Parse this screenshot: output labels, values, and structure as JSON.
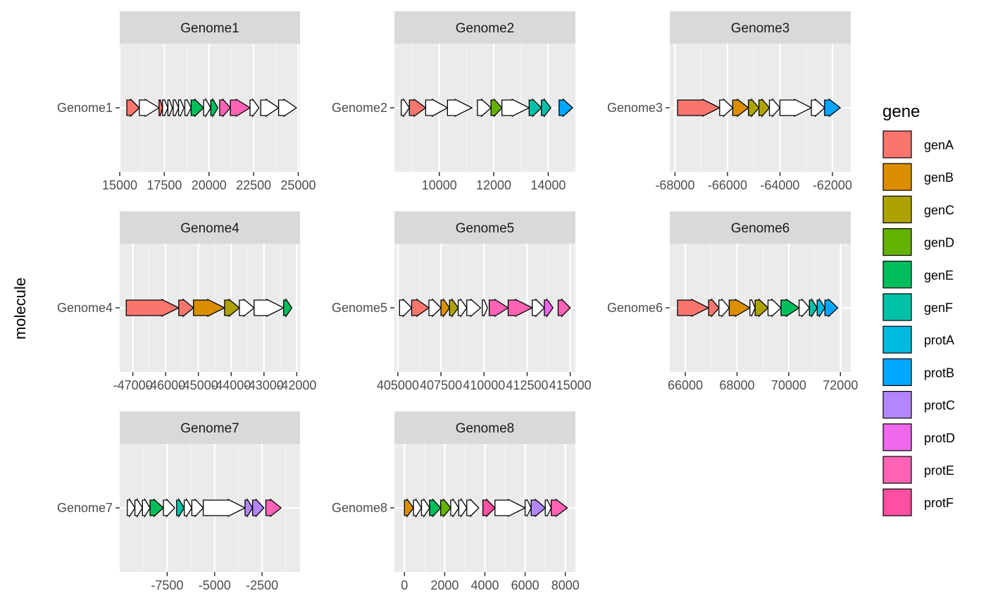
{
  "chart_data": {
    "type": "gene-arrow-map",
    "ylabel": "molecule",
    "legend": {
      "title": "gene",
      "position": "right",
      "entries": [
        {
          "name": "genA",
          "color": "#F8766D"
        },
        {
          "name": "genB",
          "color": "#DB8E00"
        },
        {
          "name": "genC",
          "color": "#AEA200"
        },
        {
          "name": "genD",
          "color": "#64B200"
        },
        {
          "name": "genE",
          "color": "#00BD5C"
        },
        {
          "name": "genF",
          "color": "#00C1A7"
        },
        {
          "name": "protA",
          "color": "#00BADE"
        },
        {
          "name": "protB",
          "color": "#00A6FF"
        },
        {
          "name": "protC",
          "color": "#B385FF"
        },
        {
          "name": "protD",
          "color": "#EF67EB"
        },
        {
          "name": "protE",
          "color": "#FF63B6"
        },
        {
          "name": "protF",
          "color": "#FF4FA0"
        }
      ]
    },
    "panels": [
      {
        "title": "Genome1",
        "molecule": "Genome1",
        "xlim": [
          15000,
          25100
        ],
        "ticks": [
          {
            "value": 15000,
            "label": "15000"
          },
          {
            "value": 17500,
            "label": "17500"
          },
          {
            "value": 20000,
            "label": "20000"
          },
          {
            "value": 22500,
            "label": "22500"
          },
          {
            "value": 25000,
            "label": "25000"
          }
        ],
        "genes": [
          {
            "start": 15400,
            "end": 16100,
            "fill": "genA"
          },
          {
            "start": 16100,
            "end": 17200,
            "fill": null
          },
          {
            "start": 17200,
            "end": 17400,
            "fill": "genA"
          },
          {
            "start": 17400,
            "end": 17700,
            "fill": null
          },
          {
            "start": 17700,
            "end": 17950,
            "fill": null
          },
          {
            "start": 18000,
            "end": 18300,
            "fill": null
          },
          {
            "start": 18300,
            "end": 18600,
            "fill": null
          },
          {
            "start": 18650,
            "end": 19000,
            "fill": null
          },
          {
            "start": 19000,
            "end": 19700,
            "fill": "genE"
          },
          {
            "start": 19700,
            "end": 20100,
            "fill": null
          },
          {
            "start": 20100,
            "end": 20500,
            "fill": "genE"
          },
          {
            "start": 20600,
            "end": 21200,
            "fill": "protE"
          },
          {
            "start": 21200,
            "end": 22300,
            "fill": "protE"
          },
          {
            "start": 22300,
            "end": 22800,
            "fill": null
          },
          {
            "start": 22900,
            "end": 23900,
            "fill": null
          },
          {
            "start": 23900,
            "end": 24900,
            "fill": null
          }
        ]
      },
      {
        "title": "Genome2",
        "molecule": "Genome2",
        "xlim": [
          8350,
          15000
        ],
        "ticks": [
          {
            "value": 10000,
            "label": "10000"
          },
          {
            "value": 12000,
            "label": "12000"
          },
          {
            "value": 14000,
            "label": "14000"
          }
        ],
        "genes": [
          {
            "start": 8600,
            "end": 8900,
            "fill": null
          },
          {
            "start": 8900,
            "end": 9500,
            "fill": "genA"
          },
          {
            "start": 9500,
            "end": 10300,
            "fill": null
          },
          {
            "start": 10300,
            "end": 11200,
            "fill": null
          },
          {
            "start": 11400,
            "end": 11900,
            "fill": null
          },
          {
            "start": 11900,
            "end": 12300,
            "fill": "genD"
          },
          {
            "start": 12300,
            "end": 13300,
            "fill": null
          },
          {
            "start": 13300,
            "end": 13750,
            "fill": "genF"
          },
          {
            "start": 13750,
            "end": 14100,
            "fill": "genF"
          },
          {
            "start": 14400,
            "end": 14900,
            "fill": "protB"
          }
        ]
      },
      {
        "title": "Genome3",
        "molecule": "Genome3",
        "xlim": [
          -68200,
          -61300
        ],
        "ticks": [
          {
            "value": -68000,
            "label": "-68000"
          },
          {
            "value": -66000,
            "label": "-66000"
          },
          {
            "value": -64000,
            "label": "-64000"
          },
          {
            "value": -62000,
            "label": "-62000"
          }
        ],
        "genes": [
          {
            "start": -67900,
            "end": -66300,
            "fill": "genA"
          },
          {
            "start": -66300,
            "end": -65800,
            "fill": null
          },
          {
            "start": -65800,
            "end": -65200,
            "fill": "genB"
          },
          {
            "start": -65200,
            "end": -64800,
            "fill": "genC"
          },
          {
            "start": -64800,
            "end": -64400,
            "fill": "genC"
          },
          {
            "start": -64400,
            "end": -64000,
            "fill": null
          },
          {
            "start": -64000,
            "end": -62800,
            "fill": null
          },
          {
            "start": -62800,
            "end": -62300,
            "fill": null
          },
          {
            "start": -62300,
            "end": -61700,
            "fill": "protB"
          }
        ]
      },
      {
        "title": "Genome4",
        "molecule": "Genome4",
        "xlim": [
          -47400,
          -41900
        ],
        "ticks": [
          {
            "value": -47000,
            "label": "-47000"
          },
          {
            "value": -46000,
            "label": "-46000"
          },
          {
            "value": -45000,
            "label": "-45000"
          },
          {
            "value": -44000,
            "label": "-44000"
          },
          {
            "value": -43000,
            "label": "-43000"
          },
          {
            "value": -42000,
            "label": "-42000"
          }
        ],
        "genes": [
          {
            "start": -47200,
            "end": -45600,
            "fill": "genA"
          },
          {
            "start": -45600,
            "end": -45150,
            "fill": "genA"
          },
          {
            "start": -45150,
            "end": -44200,
            "fill": "genB"
          },
          {
            "start": -44200,
            "end": -43750,
            "fill": "genC"
          },
          {
            "start": -43750,
            "end": -43300,
            "fill": null
          },
          {
            "start": -43300,
            "end": -42400,
            "fill": null
          },
          {
            "start": -42400,
            "end": -42150,
            "fill": "genE"
          }
        ]
      },
      {
        "title": "Genome5",
        "molecule": "Genome5",
        "xlim": [
          404800,
          415300
        ],
        "ticks": [
          {
            "value": 405000,
            "label": "405000"
          },
          {
            "value": 407500,
            "label": "407500"
          },
          {
            "value": 410000,
            "label": "410000"
          },
          {
            "value": 412500,
            "label": "412500"
          },
          {
            "value": 415000,
            "label": "415000"
          }
        ],
        "genes": [
          {
            "start": 405100,
            "end": 405800,
            "fill": null
          },
          {
            "start": 405800,
            "end": 406800,
            "fill": "genA"
          },
          {
            "start": 406800,
            "end": 407500,
            "fill": null
          },
          {
            "start": 407500,
            "end": 408000,
            "fill": "genB"
          },
          {
            "start": 408000,
            "end": 408500,
            "fill": "genC"
          },
          {
            "start": 408500,
            "end": 409000,
            "fill": null
          },
          {
            "start": 409000,
            "end": 409800,
            "fill": null
          },
          {
            "start": 409900,
            "end": 410200,
            "fill": null
          },
          {
            "start": 410300,
            "end": 411400,
            "fill": "protE"
          },
          {
            "start": 411400,
            "end": 412800,
            "fill": "protE"
          },
          {
            "start": 412800,
            "end": 413500,
            "fill": null
          },
          {
            "start": 413500,
            "end": 414000,
            "fill": "protD"
          },
          {
            "start": 414300,
            "end": 415000,
            "fill": "protE"
          }
        ]
      },
      {
        "title": "Genome6",
        "molecule": "Genome6",
        "xlim": [
          65400,
          72400
        ],
        "ticks": [
          {
            "value": 66000,
            "label": "66000"
          },
          {
            "value": 68000,
            "label": "68000"
          },
          {
            "value": 70000,
            "label": "70000"
          },
          {
            "value": 72000,
            "label": "72000"
          }
        ],
        "genes": [
          {
            "start": 65700,
            "end": 66900,
            "fill": "genA"
          },
          {
            "start": 66900,
            "end": 67300,
            "fill": "genA"
          },
          {
            "start": 67300,
            "end": 67700,
            "fill": null
          },
          {
            "start": 67700,
            "end": 68500,
            "fill": "genB"
          },
          {
            "start": 68500,
            "end": 68700,
            "fill": null
          },
          {
            "start": 68700,
            "end": 69200,
            "fill": "genC"
          },
          {
            "start": 69200,
            "end": 69700,
            "fill": null
          },
          {
            "start": 69700,
            "end": 70400,
            "fill": "genE"
          },
          {
            "start": 70400,
            "end": 70800,
            "fill": null
          },
          {
            "start": 70800,
            "end": 71100,
            "fill": "genF"
          },
          {
            "start": 71100,
            "end": 71400,
            "fill": "protA"
          },
          {
            "start": 71400,
            "end": 71900,
            "fill": "protB"
          }
        ]
      },
      {
        "title": "Genome7",
        "molecule": "Genome7",
        "xlim": [
          -10000,
          -500
        ],
        "ticks": [
          {
            "value": -7500,
            "label": "-7500"
          },
          {
            "value": -5000,
            "label": "-5000"
          },
          {
            "value": -2500,
            "label": "-2500"
          }
        ],
        "genes": [
          {
            "start": -9600,
            "end": -9200,
            "fill": null
          },
          {
            "start": -9200,
            "end": -8800,
            "fill": null
          },
          {
            "start": -8800,
            "end": -8400,
            "fill": null
          },
          {
            "start": -8400,
            "end": -7700,
            "fill": "genE"
          },
          {
            "start": -7700,
            "end": -7100,
            "fill": null
          },
          {
            "start": -7000,
            "end": -6600,
            "fill": "genF"
          },
          {
            "start": -6600,
            "end": -6200,
            "fill": null
          },
          {
            "start": -6200,
            "end": -5600,
            "fill": null
          },
          {
            "start": -5600,
            "end": -3400,
            "fill": null
          },
          {
            "start": -3400,
            "end": -3000,
            "fill": "protC"
          },
          {
            "start": -3000,
            "end": -2400,
            "fill": "protC"
          },
          {
            "start": -2300,
            "end": -1500,
            "fill": "protE"
          }
        ]
      },
      {
        "title": "Genome8",
        "molecule": "Genome8",
        "xlim": [
          -500,
          8500
        ],
        "ticks": [
          {
            "value": 0,
            "label": "0"
          },
          {
            "value": 2000,
            "label": "2000"
          },
          {
            "value": 4000,
            "label": "4000"
          },
          {
            "value": 6000,
            "label": "6000"
          },
          {
            "value": 8000,
            "label": "8000"
          }
        ],
        "genes": [
          {
            "start": 0,
            "end": 450,
            "fill": "genB"
          },
          {
            "start": 450,
            "end": 850,
            "fill": null
          },
          {
            "start": 850,
            "end": 1250,
            "fill": null
          },
          {
            "start": 1250,
            "end": 1800,
            "fill": "genE"
          },
          {
            "start": 1800,
            "end": 2300,
            "fill": "genD"
          },
          {
            "start": 2300,
            "end": 2700,
            "fill": null
          },
          {
            "start": 2700,
            "end": 3100,
            "fill": null
          },
          {
            "start": 3100,
            "end": 3700,
            "fill": null
          },
          {
            "start": 3900,
            "end": 4500,
            "fill": "protF"
          },
          {
            "start": 4500,
            "end": 6000,
            "fill": null
          },
          {
            "start": 6000,
            "end": 6300,
            "fill": null
          },
          {
            "start": 6300,
            "end": 7000,
            "fill": "protC"
          },
          {
            "start": 7000,
            "end": 7300,
            "fill": null
          },
          {
            "start": 7300,
            "end": 8100,
            "fill": "protE"
          }
        ]
      }
    ]
  }
}
